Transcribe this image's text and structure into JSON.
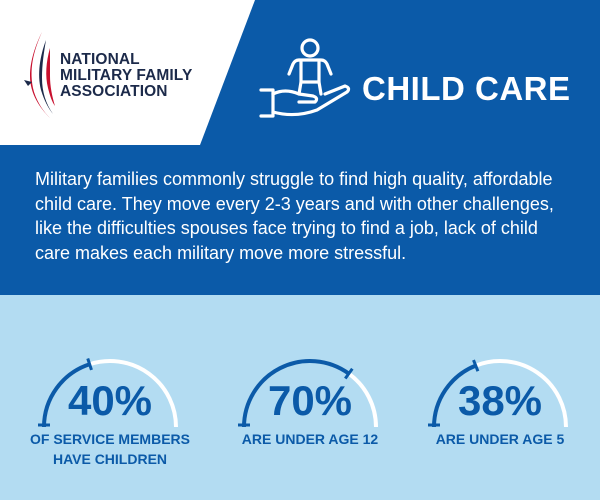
{
  "logo": {
    "lines": [
      "NATIONAL",
      "MILITARY FAMILY",
      "ASSOCIATION"
    ]
  },
  "header": {
    "icon": "hand-holding-child-icon",
    "title": "CHILD CARE"
  },
  "intro": {
    "text": "Military families commonly struggle to find high quality, affordable child care. They move every 2-3 years and with other challenges, like the difficulties spouses face trying to find a job, lack of child care makes each military move more stressful."
  },
  "colors": {
    "brand_blue": "#0b5aa8",
    "light_blue": "#b3dcf2",
    "white": "#ffffff",
    "logo_red": "#c8102e",
    "logo_navy": "#1c2a4a"
  },
  "stats": [
    {
      "value": "40%",
      "fraction": 0.4,
      "label_lines": [
        "OF SERVICE MEMBERS",
        "HAVE CHILDREN"
      ]
    },
    {
      "value": "70%",
      "fraction": 0.7,
      "label_lines": [
        "ARE UNDER AGE 12"
      ]
    },
    {
      "value": "38%",
      "fraction": 0.38,
      "label_lines": [
        "ARE UNDER AGE 5"
      ]
    }
  ]
}
